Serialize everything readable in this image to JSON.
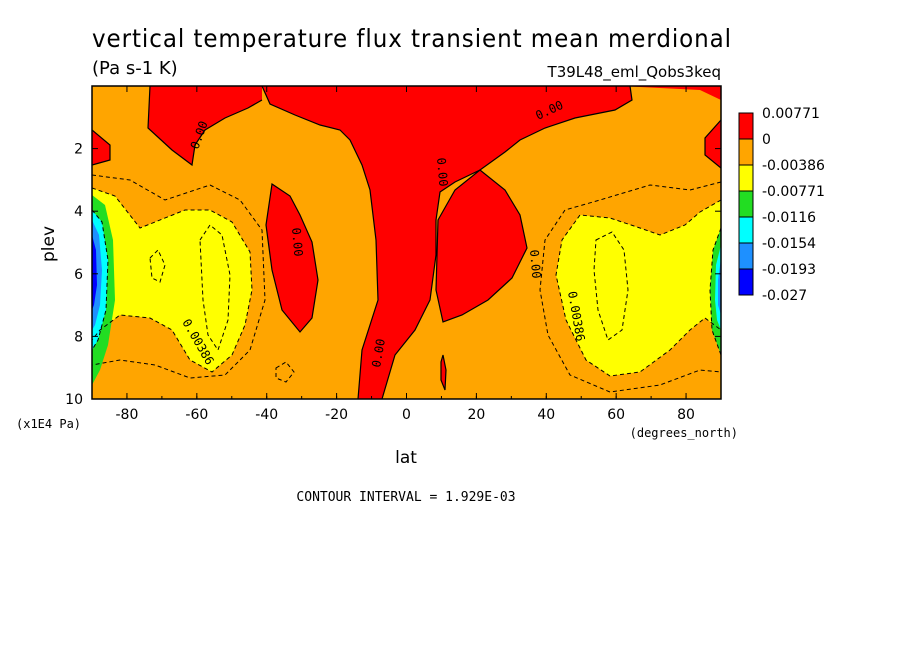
{
  "chart_data": {
    "type": "heatmap",
    "title": "vertical temperature flux transient mean merdional",
    "units": "(Pa s-1 K)",
    "run_label": "T39L48_eml_Qobs3keq",
    "xlabel": "lat",
    "x_units": "(degrees_north)",
    "ylabel": "plev",
    "y_units": "(x1E4 Pa)",
    "xlim": [
      -90,
      90
    ],
    "ylim": [
      0,
      10
    ],
    "y_inverted": true,
    "x_ticks": [
      -80,
      -60,
      -40,
      -20,
      0,
      20,
      40,
      60,
      80
    ],
    "x_tick_labels": [
      "-80",
      "-60",
      "-40",
      "-20",
      "0",
      "20",
      "40",
      "60",
      "80"
    ],
    "y_ticks": [
      2,
      4,
      6,
      8,
      10
    ],
    "y_tick_labels": [
      "2",
      "4",
      "6",
      "8",
      "10"
    ],
    "contour_interval_text": "CONTOUR INTERVAL = 1.929E-03",
    "contour_labels": [
      "0.00",
      "0.00",
      "0.00",
      "0.00",
      "0.00",
      "0.00",
      "0.00386",
      "0.00386"
    ],
    "colorbar": {
      "labels": [
        "0.00771",
        "0",
        "-0.00386",
        "-0.00771",
        "-0.0116",
        "-0.0154",
        "-0.0193",
        "-0.027"
      ],
      "colors": [
        "#ff0000",
        "#ffa500",
        "#ffff00",
        "#22dd22",
        "#00ffff",
        "#1e90ff",
        "#0000ff"
      ]
    },
    "fill_colors": {
      "positive": "#ff0000",
      "background": "#ffa500",
      "yellow": "#ffff00",
      "green": "#22dd22",
      "cyan": "#00ffff",
      "blue": "#1e90ff",
      "darkblue": "#0000ff"
    }
  }
}
